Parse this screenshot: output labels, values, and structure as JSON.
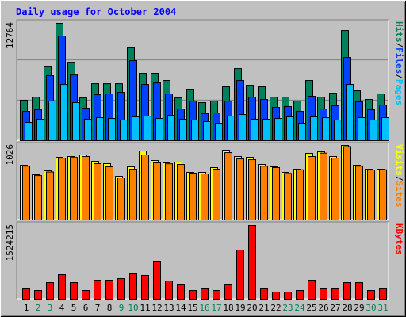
{
  "chart_data": [
    {
      "type": "bar",
      "title": "Daily usage for October 2004",
      "legend_separator": "/",
      "ylim": [
        0,
        12764
      ],
      "yticks": [
        12764
      ],
      "series": [
        {
          "name": "Hits",
          "color": "#00805c",
          "values": [
            4400,
            4740,
            8100,
            12764,
            8530,
            4650,
            6200,
            6200,
            6200,
            10170,
            7330,
            7330,
            6550,
            4650,
            5600,
            4140,
            4310,
            5860,
            7840,
            6030,
            5860,
            4740,
            4740,
            4310,
            6550,
            4740,
            5170,
            11980,
            5430,
            4480,
            5090
          ]
        },
        {
          "name": "Files",
          "color": "#0040ff",
          "values": [
            3190,
            3360,
            7070,
            11380,
            7150,
            3530,
            5000,
            5090,
            5260,
            8710,
            6120,
            6290,
            5090,
            3450,
            4310,
            2930,
            3020,
            4310,
            6550,
            4740,
            4480,
            3620,
            3710,
            3190,
            4830,
            3450,
            3790,
            9050,
            4220,
            3360,
            3880
          ]
        },
        {
          "name": "Pages",
          "color": "#00c0ff",
          "values": [
            1980,
            2330,
            4310,
            6120,
            4140,
            2330,
            2500,
            2410,
            2240,
            2590,
            2670,
            2410,
            2760,
            2330,
            2240,
            2070,
            1900,
            2670,
            2840,
            2330,
            2330,
            2410,
            2590,
            1900,
            2590,
            2500,
            2240,
            6120,
            2500,
            2240,
            2500
          ]
        }
      ]
    },
    {
      "type": "bar",
      "legend_separator": "/",
      "ylim": [
        0,
        1026
      ],
      "yticks": [
        1026
      ],
      "series": [
        {
          "name": "Visits",
          "color": "#ffff00",
          "values": [
            753,
            622,
            676,
            862,
            873,
            895,
            807,
            775,
            600,
            731,
            949,
            818,
            786,
            796,
            655,
            655,
            720,
            960,
            873,
            862,
            764,
            731,
            655,
            698,
            916,
            938,
            873,
            1026,
            753,
            698,
            698
          ]
        },
        {
          "name": "Sites",
          "color": "#ff8000",
          "values": [
            740,
            610,
            660,
            850,
            860,
            873,
            775,
            731,
            578,
            698,
            895,
            786,
            773,
            764,
            644,
            633,
            698,
            927,
            840,
            829,
            740,
            720,
            640,
            690,
            873,
            920,
            851,
            1010,
            740,
            687,
            690
          ]
        }
      ]
    },
    {
      "type": "bar",
      "ylim": [
        0,
        1524215
      ],
      "yticks": [
        1524215
      ],
      "series": [
        {
          "name": "KBytes",
          "color": "#ff0000",
          "values": [
            213000,
            180000,
            344000,
            508000,
            344000,
            180000,
            393000,
            393000,
            426000,
            524000,
            492000,
            787000,
            377000,
            311000,
            180000,
            213000,
            180000,
            311000,
            1016000,
            1524215,
            213000,
            148000,
            148000,
            180000,
            393000,
            213000,
            213000,
            344000,
            344000,
            180000,
            213000
          ]
        }
      ],
      "categories": [
        "1",
        "2",
        "3",
        "4",
        "5",
        "6",
        "7",
        "8",
        "9",
        "10",
        "11",
        "12",
        "13",
        "14",
        "15",
        "16",
        "17",
        "18",
        "19",
        "20",
        "21",
        "22",
        "23",
        "24",
        "25",
        "26",
        "27",
        "28",
        "29",
        "30",
        "31"
      ],
      "category_colors": [
        "#000000",
        "#00805c",
        "#00805c",
        "#000000",
        "#000000",
        "#000000",
        "#000000",
        "#000000",
        "#00805c",
        "#00805c",
        "#000000",
        "#000000",
        "#000000",
        "#000000",
        "#000000",
        "#00805c",
        "#00805c",
        "#000000",
        "#000000",
        "#000000",
        "#000000",
        "#000000",
        "#00805c",
        "#00805c",
        "#000000",
        "#000000",
        "#000000",
        "#000000",
        "#000000",
        "#00805c",
        "#00805c"
      ]
    }
  ]
}
